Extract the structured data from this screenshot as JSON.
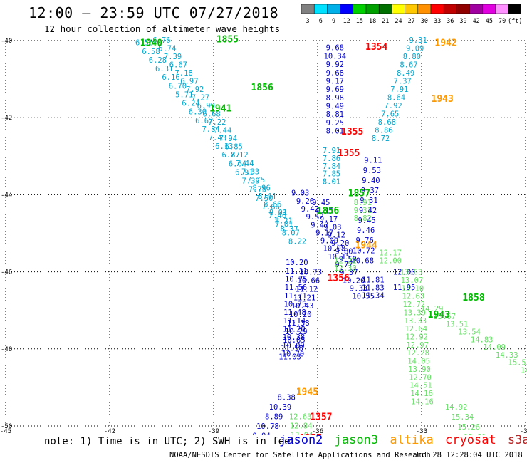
{
  "header": {
    "title": "12:00 – 23:59 UTC 07/27/2018",
    "subtitle": "12 hour collection of altimeter wave heights"
  },
  "colorbar": {
    "labels": [
      "3",
      "6",
      "9",
      "12",
      "15",
      "18",
      "21",
      "24",
      "27",
      "30",
      "33",
      "36",
      "39",
      "42",
      "45",
      "70",
      "(ft)"
    ],
    "colors": [
      "#808080",
      "#00e0ff",
      "#00b0e8",
      "#0000ff",
      "#00d000",
      "#00a000",
      "#007000",
      "#ffff00",
      "#ffc800",
      "#ff9000",
      "#ff0000",
      "#c00000",
      "#900000",
      "#a000a0",
      "#e000e0",
      "#ff90ff",
      "#000000"
    ]
  },
  "note": "note: 1) Time is in UTC; 2) SWH is in feet",
  "legend": [
    {
      "name": "jason2",
      "color": "#0000cc"
    },
    {
      "name": "jason3",
      "color": "#00bb00"
    },
    {
      "name": "altika",
      "color": "#ff9900"
    },
    {
      "name": "cryosat",
      "color": "#ff0000"
    },
    {
      "name": "s3a",
      "color": "#bb2222"
    }
  ],
  "footer": {
    "org": "NOAA/NESDIS Center for Satellite Applications and Research",
    "time": "Jul 28 12:28:04 UTC 2018"
  },
  "chart_data": {
    "type": "scatter",
    "xlim": [
      -45,
      -30
    ],
    "ylim": [
      -50,
      -40
    ],
    "x_ticks": [
      -45,
      -42,
      -39,
      -36,
      -33,
      -30
    ],
    "y_ticks": [
      -40,
      -42,
      -44,
      -46,
      -48,
      -50
    ],
    "palette": {
      "j2": "#0000cc",
      "j3": "#00bb00",
      "al": "#ff9900",
      "cr": "#ff0000",
      "cyan": "#00a8d0",
      "lg": "#66e066"
    },
    "time_labels": [
      {
        "text": "1940",
        "lon": -40.8,
        "lat": -40.05,
        "c": "j3"
      },
      {
        "text": "1855",
        "lon": -38.6,
        "lat": -39.95,
        "c": "j3"
      },
      {
        "text": "1856",
        "lon": -37.6,
        "lat": -41.2,
        "c": "j3"
      },
      {
        "text": "1941",
        "lon": -38.8,
        "lat": -41.75,
        "c": "j3"
      },
      {
        "text": "1354",
        "lon": -34.3,
        "lat": -40.15,
        "c": "cr"
      },
      {
        "text": "1942",
        "lon": -32.3,
        "lat": -40.05,
        "c": "al"
      },
      {
        "text": "1943",
        "lon": -32.4,
        "lat": -41.5,
        "c": "al"
      },
      {
        "text": "1355",
        "lon": -35.0,
        "lat": -42.35,
        "c": "cr"
      },
      {
        "text": "1355",
        "lon": -35.1,
        "lat": -42.9,
        "c": "cr"
      },
      {
        "text": "1857",
        "lon": -34.8,
        "lat": -43.95,
        "c": "j3"
      },
      {
        "text": "1856",
        "lon": -35.7,
        "lat": -44.4,
        "c": "j3"
      },
      {
        "text": "1944",
        "lon": -34.6,
        "lat": -45.3,
        "c": "al"
      },
      {
        "text": "1356",
        "lon": -35.4,
        "lat": -46.15,
        "c": "cr"
      },
      {
        "text": "1858",
        "lon": -31.5,
        "lat": -46.65,
        "c": "j3"
      },
      {
        "text": "1943",
        "lon": -32.5,
        "lat": -47.1,
        "c": "j3"
      },
      {
        "text": "1945",
        "lon": -36.3,
        "lat": -49.1,
        "c": "al"
      },
      {
        "text": "1357",
        "lon": -35.9,
        "lat": -49.75,
        "c": "cr"
      },
      {
        "text": "1357",
        "lon": -36.2,
        "lat": -50.3,
        "c": "cr"
      }
    ],
    "tracks": [
      {
        "c": "cyan",
        "lon0": -41.0,
        "lat0": -40.05,
        "dlon": 0.192,
        "dlat": 0.224,
        "values": [
          "6.56",
          "6.58",
          "6.28",
          "6.31",
          "6.16",
          "6.70",
          "5.71",
          "6.24",
          "6.30",
          "6.62",
          "7.84",
          "7.43",
          "6.13",
          "6.87",
          "6.64",
          "6.91",
          "7.39",
          "7.75",
          "7.50",
          "7.66",
          "7.46",
          "7.81",
          "8.07",
          "8.22"
        ]
      },
      {
        "c": "cyan",
        "lon0": -40.5,
        "lat0": -39.98,
        "dlon": 0.16,
        "dlat": 0.213,
        "values": [
          "6.76",
          "6.74",
          "7.39",
          "6.67",
          "7.18",
          "6.97",
          "7.92",
          "7.27",
          "6.99",
          "6.68",
          "7.22",
          "7.44",
          "7.94",
          "6.85",
          "7.12",
          "7.44",
          "7.33",
          "7.75",
          "8.96",
          "8.44",
          "8.66",
          "8.01",
          "8.21",
          "8.37"
        ]
      },
      {
        "c": "j2",
        "lon0": -35.5,
        "lat0": -40.18,
        "dlon": 0,
        "dlat": 0.216,
        "values": [
          "9.68",
          "10.34",
          "9.92",
          "9.68",
          "9.17",
          "9.69",
          "8.98",
          "9.49",
          "8.81",
          "9.25",
          "8.01"
        ]
      },
      {
        "c": "cyan",
        "lon0": -33.1,
        "lat0": -39.98,
        "dlon": -0.09,
        "dlat": 0.213,
        "values": [
          "9.31",
          "9.09",
          "8.80",
          "8.67",
          "8.49",
          "7.37",
          "7.91",
          "8.64",
          "7.92",
          "7.65",
          "8.68",
          "8.86",
          "8.72"
        ]
      },
      {
        "c": "cyan",
        "lon0": -35.6,
        "lat0": -42.85,
        "dlon": 0,
        "dlat": 0.2,
        "values": [
          "7.91",
          "7.86",
          "7.84",
          "7.85",
          "8.01"
        ]
      },
      {
        "c": "j2",
        "lon0": -34.4,
        "lat0": -43.1,
        "dlon": -0.03,
        "dlat": 0.26,
        "values": [
          "9.11",
          "9.53",
          "9.40",
          "9.37",
          "9.31",
          "9.42",
          "9.45",
          "9.46",
          "9.76",
          "10.72",
          "10.68"
        ]
      },
      {
        "c": "j2",
        "lon0": -36.5,
        "lat0": -43.95,
        "dlon": 0.14,
        "dlat": 0.206,
        "values": [
          "9.03",
          "9.26",
          "9.42",
          "9.52",
          "9.47",
          "9.17",
          "9.09",
          "10.08",
          "10.15",
          "9.77",
          "9.37",
          "10.20",
          "9.33",
          "10.55"
        ]
      },
      {
        "c": "j2",
        "lon0": -35.9,
        "lat0": -44.2,
        "dlon": 0.11,
        "dlat": 0.21,
        "values": [
          "9.45",
          "9.11",
          "9.17",
          "9.03",
          "9.12",
          "9.20",
          "9.80",
          "9.59"
        ]
      },
      {
        "c": "lg",
        "lon0": -34.7,
        "lat0": -44.2,
        "dlon": 0,
        "dlat": 0.2,
        "values": [
          "8.91",
          "9.31",
          "8.82"
        ]
      },
      {
        "c": "j2",
        "lon0": -36.6,
        "lat0": -45.75,
        "dlon": -0.01,
        "dlat": 0.216,
        "values": [
          "10.20",
          "11.11",
          "10.75",
          "11.56",
          "11.71",
          "10.75",
          "11.48",
          "11.14",
          "11.20",
          "10.38",
          "10.09",
          "10.70"
        ]
      },
      {
        "c": "j2",
        "lon0": -36.2,
        "lat0": -46.0,
        "dlon": -0.06,
        "dlat": 0.22,
        "values": [
          "10.73",
          "10.66",
          "11.12",
          "11.21",
          "10.43",
          "10.20",
          "11.38",
          "10.29",
          "10.85",
          "11.58",
          "11.03"
        ]
      },
      {
        "c": "lg",
        "lon0": -35.2,
        "lat0": -45.7,
        "dlon": 0,
        "dlat": 0.2,
        "values": [
          "12.22",
          "12.30"
        ]
      },
      {
        "c": "lg",
        "lon0": -33.9,
        "lat0": -45.5,
        "dlon": 0,
        "dlat": 0.2,
        "values": [
          "12.17",
          "12.00"
        ]
      },
      {
        "c": "j2",
        "lon0": -34.4,
        "lat0": -46.2,
        "dlon": 0,
        "dlat": 0.205,
        "values": [
          "11.81",
          "11.83",
          "11.34"
        ]
      },
      {
        "c": "j2",
        "lon0": -33.5,
        "lat0": -46.0,
        "dlon": 0,
        "dlat": 0.4,
        "values": [
          "12.00",
          "11.95"
        ]
      },
      {
        "c": "lg",
        "lon0": -33.3,
        "lat0": -46.0,
        "dlon": 0.02,
        "dlat": 0.21,
        "values": [
          "13.63",
          "13.07",
          "13.10",
          "12.63",
          "12.72",
          "13.39",
          "13.33",
          "12.64",
          "12.92",
          "12.97",
          "12.28",
          "14.05",
          "13.90",
          "12.70",
          "14.51",
          "14.16",
          "14.16"
        ]
      },
      {
        "c": "lg",
        "lon0": -32.7,
        "lat0": -46.95,
        "dlon": 0.36,
        "dlat": 0.2,
        "values": [
          "14.29",
          "13.67",
          "13.51",
          "13.54",
          "14.83",
          "14.09",
          "14.33",
          "15.53",
          "14.32",
          "13.98",
          "13.52",
          "14.46",
          "14.03",
          "15.81"
        ]
      },
      {
        "c": "lg",
        "lon0": -32.0,
        "lat0": -49.5,
        "dlon": 0.18,
        "dlat": 0.26,
        "values": [
          "14.92",
          "15.34",
          "15.26",
          "15.81"
        ]
      },
      {
        "c": "j2",
        "lon0": -36.9,
        "lat0": -49.25,
        "dlon": -0.18,
        "dlat": 0.25,
        "values": [
          "8.38",
          "10.39",
          "8.89",
          "10.78",
          "9.94",
          "11.84",
          "10.65",
          "10.84"
        ]
      },
      {
        "c": "lg",
        "lon0": -36.5,
        "lat0": -49.75,
        "dlon": 0.02,
        "dlat": 0.24,
        "values": [
          "12.63",
          "12.84",
          "12.94"
        ]
      }
    ]
  }
}
